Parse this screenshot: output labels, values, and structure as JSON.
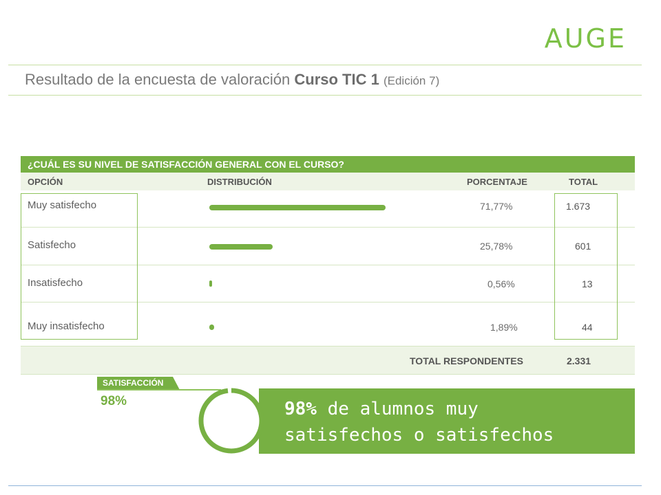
{
  "brand": {
    "logo_text": "AUGE"
  },
  "title": {
    "prefix": "Resultado de la encuesta de valoración ",
    "course": "Curso TIC 1",
    "edition": "(Edición 7)"
  },
  "survey": {
    "question": "¿CUÁL ES SU NIVEL DE SATISFACCIÓN GENERAL CON EL CURSO?",
    "columns": {
      "option": "OPCIÓN",
      "distribution": "DISTRIBUCIÓN",
      "percentage": "PORCENTAJE",
      "total": "TOTAL"
    },
    "rows": [
      {
        "option": "Muy satisfecho",
        "percentage": "71,77%",
        "total": "1.673",
        "share": 0.7177
      },
      {
        "option": "Satisfecho",
        "percentage": "25,78%",
        "total": "601",
        "share": 0.2578
      },
      {
        "option": "Insatisfecho",
        "percentage": "0,56%",
        "total": "13",
        "share": 0.0056
      },
      {
        "option": "Muy insatisfecho",
        "percentage": "1,89%",
        "total": "44",
        "share": 0.0189
      }
    ],
    "footer": {
      "label": "TOTAL RESPONDENTES",
      "value": "2.331"
    }
  },
  "satisfaction": {
    "tag": "SATISFACCIÓN",
    "value": "98%",
    "level": 0.98,
    "banner_bold": "98%",
    "banner_line1": " de alumnos muy",
    "banner_line2": "satisfechos o satisfechos"
  },
  "colors": {
    "accent": "#77b043",
    "light": "#eef4e6"
  }
}
